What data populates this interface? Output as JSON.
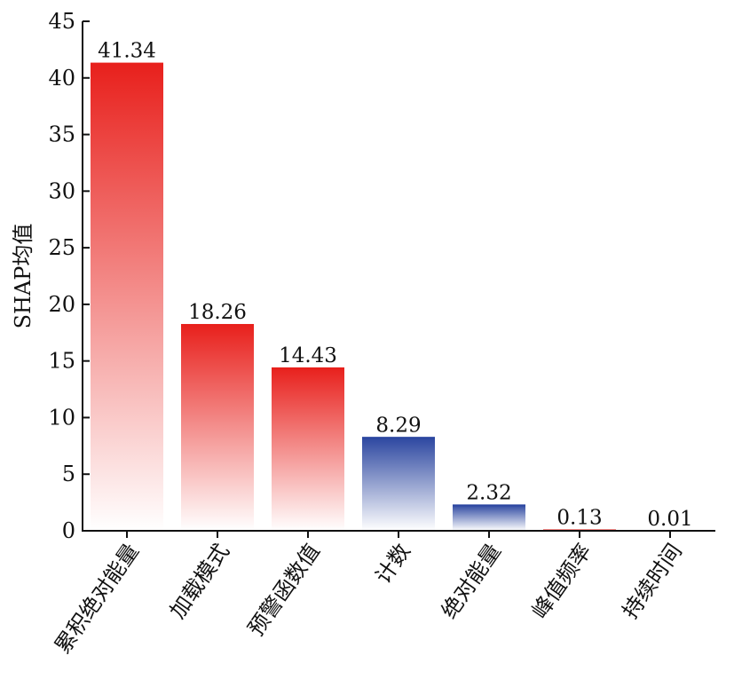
{
  "chart_data": {
    "type": "bar",
    "title": "",
    "xlabel": "",
    "ylabel": "SHAP均值",
    "ylim": [
      0,
      45
    ],
    "yticks": [
      0,
      5,
      10,
      15,
      20,
      25,
      30,
      35,
      40,
      45
    ],
    "grid": false,
    "categories": [
      "累积绝对能量",
      "加载模式",
      "预警函数值",
      "计数",
      "绝对能量",
      "峰值频率",
      "持续时间"
    ],
    "values": [
      41.34,
      18.26,
      14.43,
      8.29,
      2.32,
      0.13,
      0.01
    ],
    "value_labels": [
      "41.34",
      "18.26",
      "14.43",
      "8.29",
      "2.32",
      "0.13",
      "0.01"
    ],
    "bar_colors": [
      "#e8201c",
      "#e8201c",
      "#e8201c",
      "#2b46a0",
      "#2b46a0",
      "#e8201c",
      "#e8201c"
    ],
    "bar_fill": "vertical gradient to white"
  }
}
